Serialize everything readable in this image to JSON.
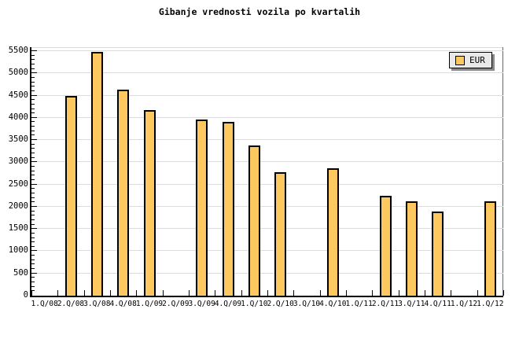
{
  "chart_data": {
    "type": "bar",
    "title": "Gibanje vrednosti vozila po kvartalih",
    "categories": [
      "1.Q/08",
      "2.Q/08",
      "3.Q/08",
      "4.Q/08",
      "1.Q/09",
      "2.Q/09",
      "3.Q/09",
      "4.Q/09",
      "1.Q/10",
      "2.Q/10",
      "3.Q/10",
      "4.Q/10",
      "1.Q/11",
      "2.Q/11",
      "3.Q/11",
      "4.Q/11",
      "1.Q/12",
      "1.Q/12"
    ],
    "series": [
      {
        "name": "EUR",
        "values": [
          null,
          4500,
          5490,
          4640,
          4170,
          null,
          3970,
          3900,
          3370,
          2780,
          null,
          2860,
          null,
          2250,
          2130,
          1900,
          null,
          2130
        ]
      }
    ],
    "xlabel": "",
    "ylabel": "",
    "ylim": [
      0,
      5500
    ],
    "ytick_step": 500,
    "yminor_step": 100,
    "ytick_labels": [
      "0",
      "500",
      "1000",
      "1500",
      "2000",
      "2500",
      "3000",
      "3500",
      "4000",
      "4500",
      "5000",
      "5500"
    ],
    "grid": "horizontal",
    "legend": {
      "label": "EUR",
      "position": "top-right"
    },
    "colors": {
      "background": "#FFFFFF",
      "bar_fill": "#FDC860",
      "bar_border": "#000000",
      "grid_line": "#DCDCDC",
      "axis": "#000000",
      "frame_top": "#DCDCDC",
      "frame_right": "#666666",
      "legend_bg": "#E9E9E9",
      "legend_shadow": "#8A8A8A",
      "text": "#000000"
    }
  }
}
